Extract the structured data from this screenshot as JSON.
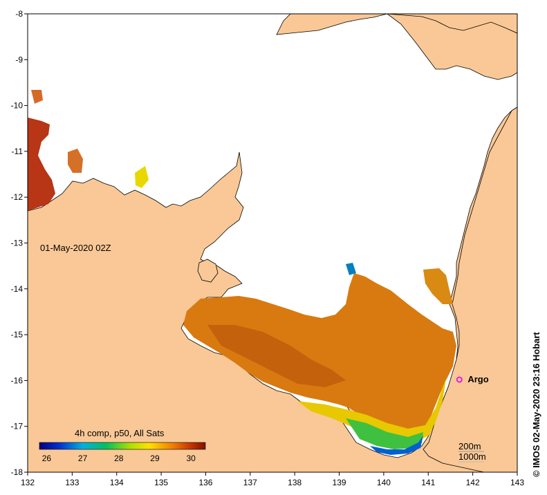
{
  "map": {
    "timestamp_label": "01-May-2020 02Z",
    "lon_ticks": [
      "132",
      "133",
      "134",
      "135",
      "136",
      "137",
      "138",
      "139",
      "140",
      "141",
      "142",
      "143"
    ],
    "lat_ticks": [
      "-8",
      "-9",
      "-10",
      "-11",
      "-12",
      "-13",
      "-14",
      "-15",
      "-16",
      "-17",
      "-18"
    ],
    "lon_range": [
      132,
      143
    ],
    "lat_range": [
      -18,
      -8
    ],
    "land_color": "#f9c896",
    "water_color": "#ffffff"
  },
  "legend": {
    "title": "4h comp, p50, All Sats",
    "ticks": [
      "26",
      "27",
      "28",
      "29",
      "30"
    ],
    "range": [
      25.8,
      30.4
    ]
  },
  "argo": {
    "label": "Argo",
    "lon": 141.7,
    "lat": -15.98,
    "color": "#e020e0"
  },
  "depth_labels": {
    "d200": "200m",
    "d1000": "1000m"
  },
  "credit": "© IMOS 02-May-2020 23:16 Hobart"
}
